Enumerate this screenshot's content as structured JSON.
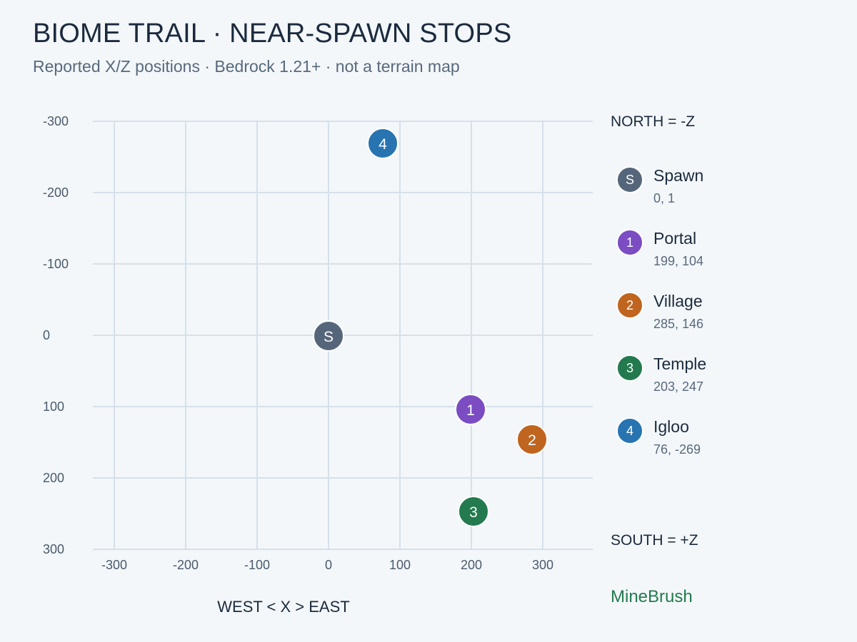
{
  "header": {
    "title": "BIOME TRAIL · NEAR-SPAWN STOPS",
    "subtitle": "Reported X/Z positions · Bedrock 1.21+ · not a terrain map"
  },
  "labels": {
    "north": "NORTH = -Z",
    "south": "SOUTH = +Z",
    "brand": "MineBrush"
  },
  "chart_data": {
    "type": "scatter",
    "xlabel": "WEST < X > EAST",
    "xlim": [
      -330,
      370
    ],
    "ylim": [
      -300,
      300
    ],
    "y_inverted": true,
    "x_ticks": [
      -300,
      -200,
      -100,
      0,
      100,
      200,
      300
    ],
    "y_ticks": [
      -300,
      -200,
      -100,
      0,
      100,
      200,
      300
    ],
    "grid": true,
    "legend_position": "right",
    "points": [
      {
        "badge": "S",
        "name": "Spawn",
        "x": 0,
        "z": 1,
        "coords": "0, 1",
        "color": "#56667a"
      },
      {
        "badge": "1",
        "name": "Portal",
        "x": 199,
        "z": 104,
        "coords": "199, 104",
        "color": "#7b4cc2"
      },
      {
        "badge": "2",
        "name": "Village",
        "x": 285,
        "z": 146,
        "coords": "285, 146",
        "color": "#bf651f"
      },
      {
        "badge": "3",
        "name": "Temple",
        "x": 203,
        "z": 247,
        "coords": "203, 247",
        "color": "#237a4e"
      },
      {
        "badge": "4",
        "name": "Igloo",
        "x": 76,
        "z": -269,
        "coords": "76, -269",
        "color": "#2774b0"
      }
    ]
  }
}
